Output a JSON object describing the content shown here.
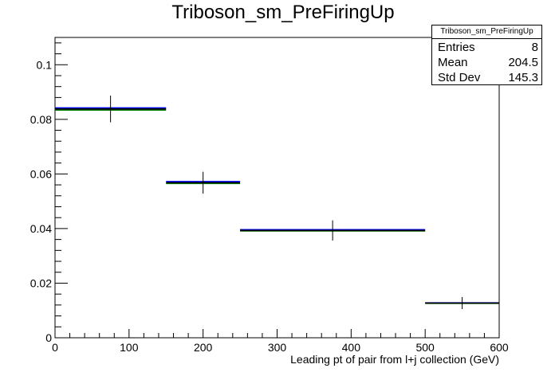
{
  "chart_data": {
    "type": "histogram",
    "title": "Triboson_sm_PreFiringUp",
    "xlabel": "Leading pt of pair from l+j collection (GeV)",
    "ylabel": "",
    "xlim": [
      0,
      600
    ],
    "ylim": [
      0,
      0.11
    ],
    "x_ticks": [
      0,
      100,
      200,
      300,
      400,
      500,
      600
    ],
    "y_ticks": [
      0,
      0.02,
      0.04,
      0.06,
      0.08,
      0.1
    ],
    "y_tick_labels": [
      "0",
      "0.02",
      "0.04",
      "0.06",
      "0.08",
      "0.1"
    ],
    "bin_edges": [
      0,
      150,
      250,
      500,
      600
    ],
    "bin_centers": [
      75,
      200,
      375,
      550
    ],
    "values": [
      0.0838,
      0.0568,
      0.0393,
      0.0127
    ],
    "errors": [
      0.0049,
      0.004,
      0.0037,
      0.0022
    ],
    "series": [
      {
        "color": "#0000ff",
        "values": [
          0.0842,
          0.0572,
          0.0396,
          0.0128
        ]
      },
      {
        "color": "#008000",
        "values": [
          0.0834,
          0.0565,
          0.0391,
          0.0126
        ]
      },
      {
        "color": "#000000",
        "values": [
          0.0838,
          0.0568,
          0.0393,
          0.0127
        ]
      }
    ],
    "stats": {
      "title": "Triboson_sm_PreFiringUp",
      "entries_label": "Entries",
      "entries": "8",
      "mean_label": "Mean",
      "mean": "204.5",
      "stddev_label": "Std Dev",
      "stddev": "145.3"
    },
    "grid": false,
    "legend_position": "top-right"
  }
}
